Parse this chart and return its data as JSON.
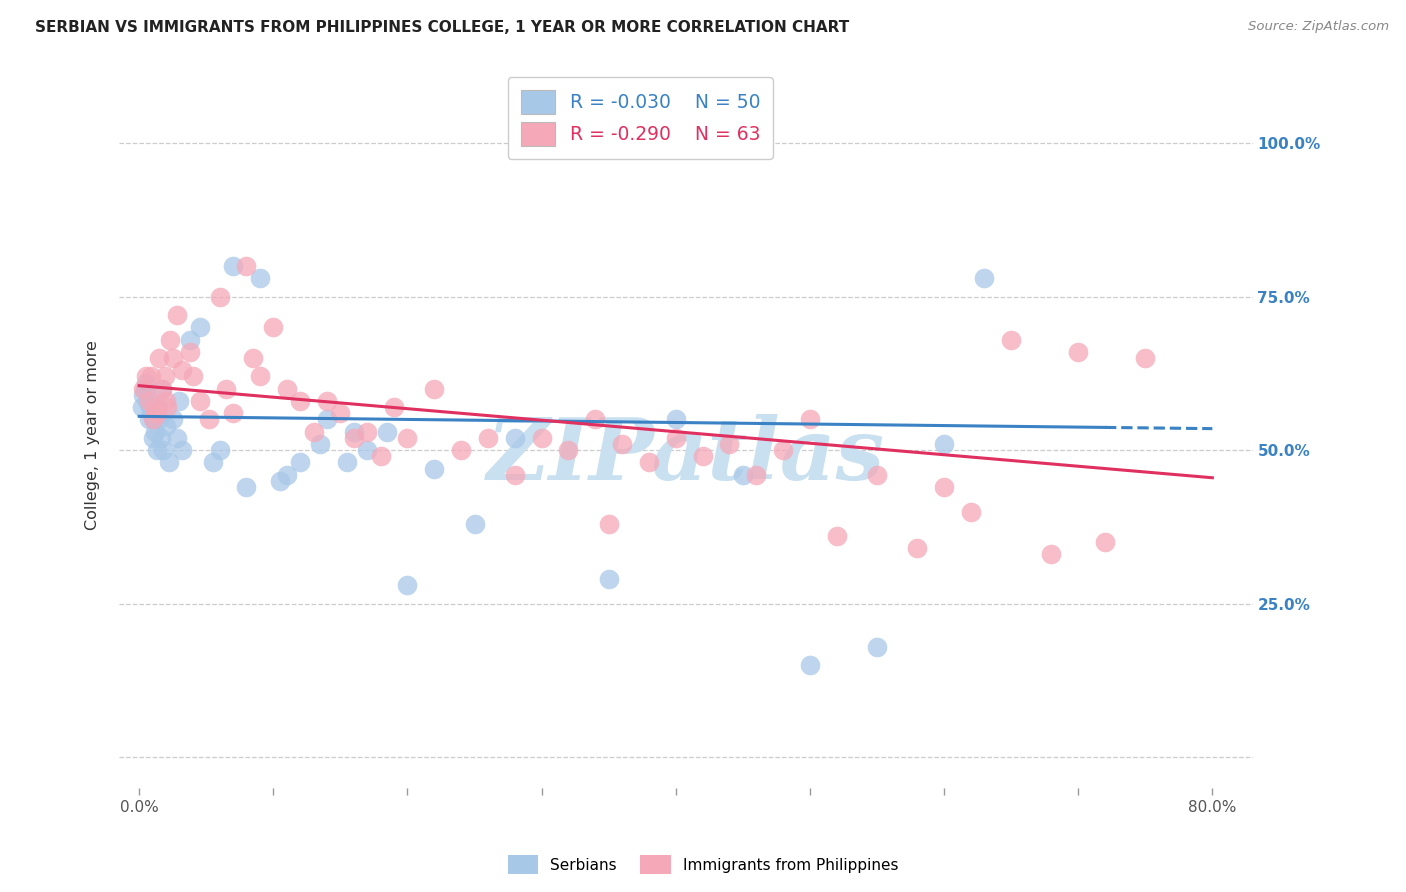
{
  "title": "SERBIAN VS IMMIGRANTS FROM PHILIPPINES COLLEGE, 1 YEAR OR MORE CORRELATION CHART",
  "source": "Source: ZipAtlas.com",
  "xlabel_ticks": [
    "0.0%",
    "",
    "",
    "",
    "",
    "",
    "",
    "",
    "80.0%"
  ],
  "xlabel_vals": [
    0,
    10,
    20,
    30,
    40,
    50,
    60,
    70,
    80
  ],
  "ylabel": "College, 1 year or more",
  "right_ytick_labels": [
    "100.0%",
    "75.0%",
    "50.0%",
    "25.0%",
    ""
  ],
  "right_ytick_vals": [
    100,
    75,
    50,
    25,
    0
  ],
  "grid_y_vals": [
    0,
    25,
    50,
    75,
    100
  ],
  "xlim": [
    -1.5,
    83
  ],
  "ylim": [
    -5,
    110
  ],
  "legend_blue_r": "R = -0.030",
  "legend_blue_n": "N = 50",
  "legend_pink_r": "R = -0.290",
  "legend_pink_n": "N = 63",
  "blue_scatter_color": "#a8c8e8",
  "pink_scatter_color": "#f5a8b8",
  "blue_line_color": "#3a82c4",
  "pink_line_color": "#e03060",
  "watermark_color": "#c8e0f0",
  "watermark_text": "ZIPatlas",
  "blue_line_x0": 0,
  "blue_line_y0": 55.5,
  "blue_line_x1": 80,
  "blue_line_y1": 53.5,
  "blue_dash_x0": 72,
  "blue_dash_x1": 80,
  "pink_line_x0": 0,
  "pink_line_y0": 60.5,
  "pink_line_x1": 80,
  "pink_line_y1": 45.5,
  "blue_scatter_x": [
    0.2,
    0.3,
    0.4,
    0.5,
    0.6,
    0.7,
    0.8,
    0.9,
    1.0,
    1.1,
    1.2,
    1.3,
    1.4,
    1.5,
    1.6,
    1.7,
    1.8,
    2.0,
    2.2,
    2.5,
    2.8,
    3.2,
    3.8,
    4.5,
    5.5,
    7.0,
    9.0,
    10.5,
    12.0,
    14.0,
    15.5,
    17.0,
    18.5,
    20.0,
    22.0,
    25.0,
    28.0,
    35.0,
    40.0,
    45.0,
    50.0,
    55.0,
    60.0,
    63.0,
    3.0,
    6.0,
    8.0,
    11.0,
    13.5,
    16.0
  ],
  "blue_scatter_y": [
    57,
    59,
    60,
    61,
    58,
    55,
    57,
    56,
    52,
    55,
    53,
    50,
    57,
    55,
    52,
    60,
    50,
    54,
    48,
    55,
    52,
    50,
    68,
    70,
    48,
    80,
    78,
    45,
    48,
    55,
    48,
    50,
    53,
    28,
    47,
    38,
    52,
    29,
    55,
    46,
    15,
    18,
    51,
    78,
    58,
    50,
    44,
    46,
    51,
    53
  ],
  "pink_scatter_x": [
    0.3,
    0.5,
    0.7,
    0.9,
    1.1,
    1.3,
    1.5,
    1.7,
    1.9,
    2.1,
    2.3,
    2.5,
    2.8,
    3.2,
    3.8,
    4.5,
    5.2,
    6.0,
    7.0,
    8.0,
    9.0,
    10.0,
    11.0,
    12.0,
    13.0,
    14.0,
    15.0,
    16.0,
    17.0,
    18.0,
    19.0,
    20.0,
    22.0,
    24.0,
    26.0,
    28.0,
    30.0,
    32.0,
    34.0,
    36.0,
    38.0,
    40.0,
    42.0,
    44.0,
    46.0,
    48.0,
    50.0,
    52.0,
    55.0,
    58.0,
    60.0,
    62.0,
    65.0,
    68.0,
    70.0,
    72.0,
    75.0,
    1.0,
    2.0,
    4.0,
    6.5,
    8.5,
    35.0
  ],
  "pink_scatter_y": [
    60,
    62,
    58,
    62,
    57,
    56,
    65,
    60,
    62,
    57,
    68,
    65,
    72,
    63,
    66,
    58,
    55,
    75,
    56,
    80,
    62,
    70,
    60,
    58,
    53,
    58,
    56,
    52,
    53,
    49,
    57,
    52,
    60,
    50,
    52,
    46,
    52,
    50,
    55,
    51,
    48,
    52,
    49,
    51,
    46,
    50,
    55,
    36,
    46,
    34,
    44,
    40,
    68,
    33,
    66,
    35,
    65,
    55,
    58,
    62,
    60,
    65,
    38
  ]
}
